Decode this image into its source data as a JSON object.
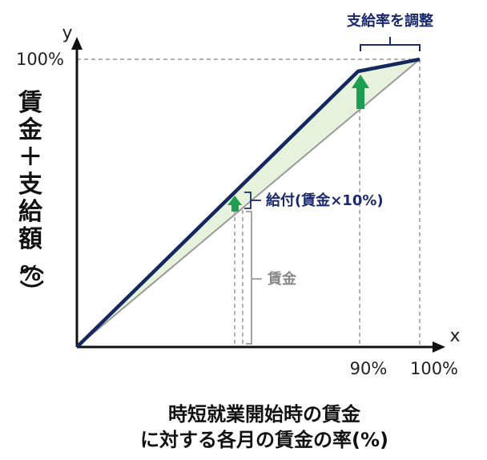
{
  "axes": {
    "x_symbol": "x",
    "y_symbol": "y",
    "y_tick_100": "100%",
    "x_tick_90": "90%",
    "x_tick_100": "100%"
  },
  "annotations": {
    "adjust_rate": "支給率を調整",
    "benefit": "給付(賃金×10%)",
    "wage": "賃金"
  },
  "labels": {
    "y_axis": [
      "賃",
      "金",
      "＋",
      "支",
      "給",
      "額",
      "（",
      "%",
      "）"
    ],
    "x_axis_line1": "時短就業開始時の賃金",
    "x_axis_line2": "に対する各月の賃金の率(%)"
  },
  "colors": {
    "navy_line": "#14285e",
    "gray_line": "#9a9a9a",
    "band_fill": "#e6f2dc",
    "arrow_green": "#1e9e52",
    "dashed": "#999999"
  },
  "chart_data": {
    "type": "line",
    "series": [
      {
        "x": [
          0,
          90,
          100
        ],
        "y": [
          0,
          99,
          100
        ]
      },
      {
        "x": [
          0,
          100
        ],
        "y": [
          0,
          100
        ]
      }
    ],
    "xlim": [
      0,
      100
    ],
    "ylim": [
      0,
      100
    ]
  }
}
